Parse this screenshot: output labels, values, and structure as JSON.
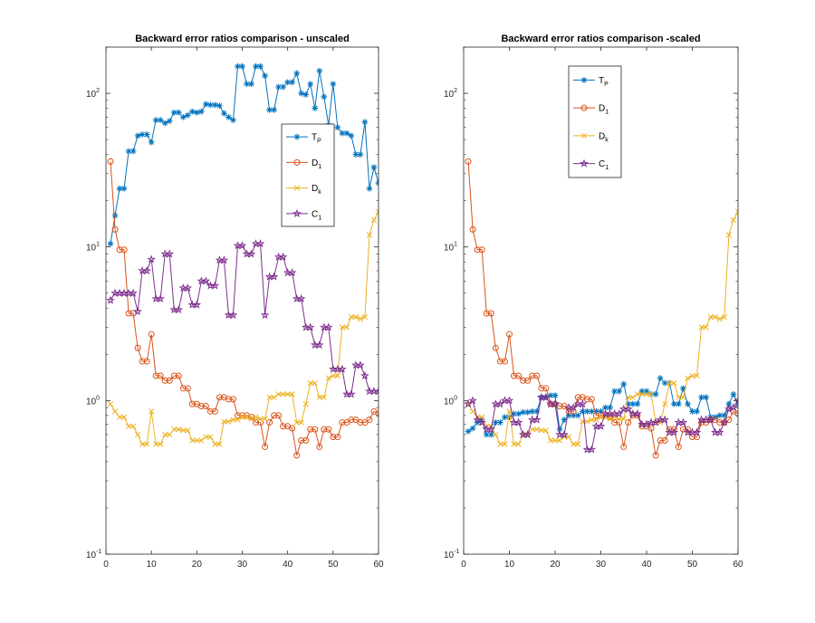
{
  "chart_data": [
    {
      "type": "line",
      "title": "Backward error ratios comparison - unscaled",
      "xlabel": "",
      "ylabel": "",
      "xlim": [
        0,
        60
      ],
      "ylim": [
        0.1,
        200
      ],
      "yscale": "log",
      "x_ticks": [
        "0",
        "10",
        "20",
        "30",
        "40",
        "50",
        "60"
      ],
      "y_ticks": [
        {
          "base": "10",
          "exp": "-1",
          "value": 0.1
        },
        {
          "base": "10",
          "exp": "0",
          "value": 1
        },
        {
          "base": "10",
          "exp": "1",
          "value": 10
        },
        {
          "base": "10",
          "exp": "2",
          "value": 100
        }
      ],
      "legend_position": "top-right",
      "series": [
        {
          "name": "T",
          "sub": "P",
          "color": "#0072bd",
          "marker": "asterisk",
          "values": [
            10.5,
            16,
            24,
            24,
            42,
            42,
            53,
            54,
            54,
            48,
            67,
            67,
            64,
            66,
            75,
            75,
            70,
            72,
            76,
            75,
            76,
            85,
            84,
            84,
            83,
            74,
            70,
            67,
            150,
            150,
            115,
            115,
            150,
            150,
            130,
            78,
            78,
            110,
            110,
            118,
            118,
            135,
            100,
            98,
            115,
            80,
            140,
            95,
            62,
            115,
            60,
            55,
            55,
            53,
            40,
            40,
            65,
            24,
            33,
            26
          ]
        },
        {
          "name": "D",
          "sub": "1",
          "color": "#d95319",
          "marker": "circle",
          "values": [
            36,
            13,
            9.6,
            9.6,
            3.7,
            3.7,
            2.2,
            1.8,
            1.8,
            2.7,
            1.45,
            1.45,
            1.35,
            1.35,
            1.45,
            1.45,
            1.2,
            1.2,
            0.95,
            0.95,
            0.92,
            0.92,
            0.85,
            0.85,
            1.05,
            1.05,
            1.02,
            1.02,
            0.8,
            0.8,
            0.8,
            0.78,
            0.72,
            0.72,
            0.5,
            0.72,
            0.8,
            0.8,
            0.68,
            0.68,
            0.66,
            0.44,
            0.55,
            0.55,
            0.65,
            0.65,
            0.5,
            0.65,
            0.65,
            0.58,
            0.58,
            0.72,
            0.72,
            0.75,
            0.75,
            0.72,
            0.72,
            0.75,
            0.85,
            0.82
          ]
        },
        {
          "name": "D",
          "sub": "k",
          "color": "#edb120",
          "marker": "cross",
          "values": [
            0.95,
            0.85,
            0.78,
            0.78,
            0.68,
            0.68,
            0.6,
            0.52,
            0.52,
            0.85,
            0.52,
            0.52,
            0.6,
            0.6,
            0.65,
            0.65,
            0.64,
            0.64,
            0.55,
            0.55,
            0.55,
            0.58,
            0.58,
            0.52,
            0.52,
            0.73,
            0.73,
            0.75,
            0.75,
            0.78,
            0.78,
            0.76,
            0.78,
            0.76,
            0.76,
            1.05,
            1.05,
            1.1,
            1.1,
            1.1,
            1.1,
            0.72,
            0.72,
            0.95,
            1.3,
            1.3,
            1.05,
            1.05,
            1.4,
            1.45,
            1.45,
            3,
            3,
            3.5,
            3.5,
            3.4,
            3.5,
            12,
            15,
            17
          ]
        },
        {
          "name": "C",
          "sub": "1",
          "color": "#7e2f8e",
          "marker": "pentagram",
          "values": [
            4.5,
            5,
            5,
            5,
            5,
            5,
            3.8,
            7,
            7,
            8.3,
            4.6,
            4.6,
            9,
            9,
            3.9,
            3.9,
            5.4,
            5.4,
            4.2,
            4.2,
            6,
            6,
            5.6,
            5.6,
            8.2,
            8.2,
            3.6,
            3.6,
            10.2,
            10.2,
            9,
            9,
            10.5,
            10.5,
            3.6,
            6.4,
            6.4,
            8.6,
            8.6,
            6.8,
            6.8,
            4.6,
            4.6,
            3,
            3,
            2.3,
            2.3,
            3,
            3,
            1.6,
            1.6,
            1.6,
            1.1,
            1.1,
            1.7,
            1.7,
            1.45,
            1.15,
            1.15,
            1.15
          ]
        }
      ]
    },
    {
      "type": "line",
      "title": "Backward error ratios comparison -scaled",
      "xlabel": "",
      "ylabel": "",
      "xlim": [
        0,
        60
      ],
      "ylim": [
        0.1,
        200
      ],
      "yscale": "log",
      "x_ticks": [
        "0",
        "10",
        "20",
        "30",
        "40",
        "50",
        "60"
      ],
      "y_ticks": [
        {
          "base": "10",
          "exp": "-1",
          "value": 0.1
        },
        {
          "base": "10",
          "exp": "0",
          "value": 1
        },
        {
          "base": "10",
          "exp": "1",
          "value": 10
        },
        {
          "base": "10",
          "exp": "2",
          "value": 100
        }
      ],
      "legend_position": "top-center",
      "series": [
        {
          "name": "T",
          "sub": "P",
          "color": "#0072bd",
          "marker": "asterisk",
          "values": [
            0.63,
            0.66,
            0.72,
            0.75,
            0.6,
            0.6,
            0.72,
            0.72,
            0.78,
            0.78,
            0.82,
            0.82,
            0.84,
            0.84,
            0.85,
            0.85,
            1.05,
            1.05,
            1.08,
            1.08,
            0.65,
            0.75,
            0.8,
            0.8,
            0.8,
            0.85,
            0.85,
            0.85,
            0.85,
            0.85,
            0.9,
            0.9,
            1.15,
            1.15,
            1.28,
            0.95,
            0.95,
            0.95,
            1.15,
            1.15,
            1.1,
            1.1,
            1.4,
            1.3,
            1.3,
            0.95,
            0.95,
            1.2,
            0.95,
            0.85,
            0.85,
            1.05,
            1.05,
            0.78,
            0.78,
            0.8,
            0.8,
            0.95,
            1.1,
            0.95
          ]
        },
        {
          "name": "D",
          "sub": "1",
          "color": "#d95319",
          "marker": "circle",
          "values": [
            36,
            13,
            9.6,
            9.6,
            3.7,
            3.7,
            2.2,
            1.8,
            1.8,
            2.7,
            1.45,
            1.45,
            1.35,
            1.35,
            1.45,
            1.45,
            1.2,
            1.2,
            0.95,
            0.95,
            0.92,
            0.92,
            0.85,
            0.85,
            1.05,
            1.05,
            1.02,
            1.02,
            0.8,
            0.8,
            0.8,
            0.78,
            0.72,
            0.72,
            0.5,
            0.72,
            0.8,
            0.8,
            0.68,
            0.68,
            0.66,
            0.44,
            0.55,
            0.55,
            0.65,
            0.65,
            0.5,
            0.65,
            0.65,
            0.58,
            0.58,
            0.72,
            0.72,
            0.75,
            0.75,
            0.72,
            0.72,
            0.75,
            0.85,
            0.82
          ]
        },
        {
          "name": "D",
          "sub": "k",
          "color": "#edb120",
          "marker": "cross",
          "values": [
            0.95,
            0.85,
            0.78,
            0.78,
            0.68,
            0.68,
            0.6,
            0.52,
            0.52,
            0.85,
            0.52,
            0.52,
            0.6,
            0.6,
            0.65,
            0.65,
            0.64,
            0.64,
            0.55,
            0.55,
            0.55,
            0.58,
            0.58,
            0.52,
            0.52,
            0.73,
            0.73,
            0.75,
            0.75,
            0.78,
            0.78,
            0.76,
            0.78,
            0.76,
            0.76,
            1.05,
            1.05,
            1.1,
            1.1,
            1.1,
            1.1,
            0.72,
            0.72,
            0.95,
            1.3,
            1.3,
            1.05,
            1.05,
            1.4,
            1.45,
            1.45,
            3,
            3,
            3.5,
            3.5,
            3.4,
            3.5,
            12,
            15,
            17
          ]
        },
        {
          "name": "C",
          "sub": "1",
          "color": "#7e2f8e",
          "marker": "pentagram",
          "values": [
            0.95,
            1.0,
            0.75,
            0.72,
            0.65,
            0.65,
            0.95,
            0.95,
            1.0,
            1.0,
            0.72,
            0.72,
            0.6,
            0.6,
            0.75,
            0.75,
            1.05,
            1.05,
            0.95,
            0.95,
            0.6,
            0.6,
            0.9,
            0.9,
            0.95,
            0.95,
            0.48,
            0.48,
            0.68,
            0.68,
            0.82,
            0.82,
            0.82,
            0.82,
            0.88,
            0.88,
            0.82,
            0.82,
            0.7,
            0.7,
            0.72,
            0.72,
            0.75,
            0.75,
            0.62,
            0.62,
            0.72,
            0.72,
            0.62,
            0.62,
            0.62,
            0.75,
            0.75,
            0.75,
            0.62,
            0.62,
            0.72,
            0.88,
            0.9,
            1.0
          ]
        }
      ]
    }
  ]
}
